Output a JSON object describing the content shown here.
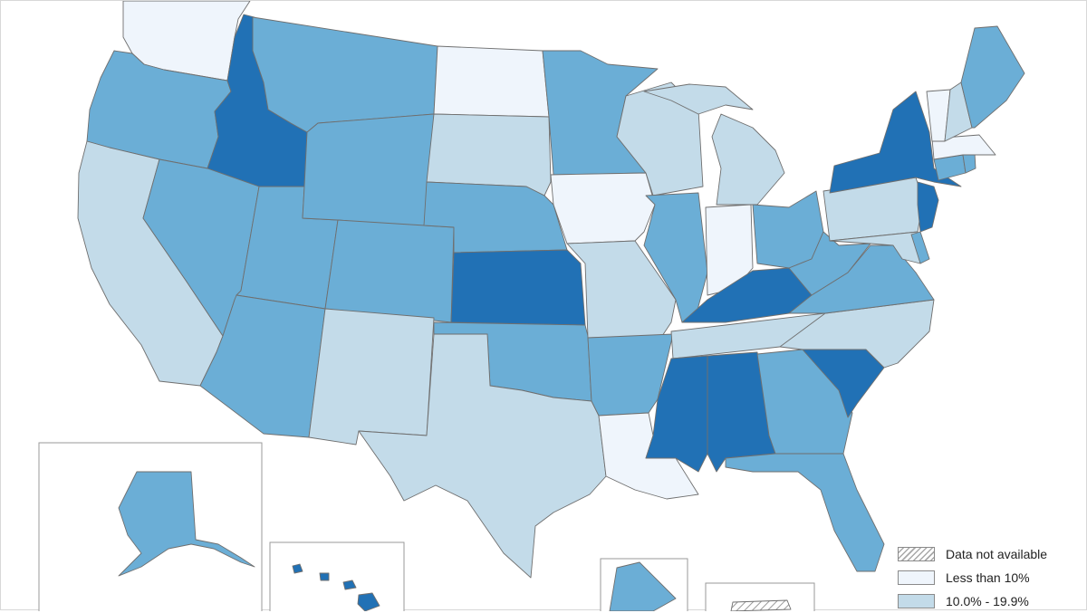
{
  "map": {
    "type": "choropleth",
    "region": "United States"
  },
  "colors": {
    "not_available_hatch": "#a8a8a8",
    "less_than_10": "#eff5fc",
    "ten_to_19_9": "#c3dbe9",
    "twenty_to_29_9": "#6baed6",
    "thirty_plus": "#2171b5",
    "border": "#6f6f6f"
  },
  "legend": {
    "items": [
      {
        "label": "Data not available",
        "class": "na"
      },
      {
        "label": "Less than 10%",
        "class": "c1"
      },
      {
        "label": "10.0% - 19.9%",
        "class": "c2"
      }
    ]
  },
  "state_classes": {
    "WA": "c1",
    "OR": "c3",
    "CA": "c2",
    "ID": "c4",
    "MT": "c3",
    "NV": "c3",
    "UT": "c3",
    "AZ": "c3",
    "WY": "c3",
    "CO": "c3",
    "NM": "c2",
    "ND": "c1",
    "SD": "c2",
    "NE": "c3",
    "KS": "c4",
    "OK": "c3",
    "TX": "c2",
    "MN": "c3",
    "IA": "c1",
    "MO": "c2",
    "AR": "c3",
    "LA": "c1",
    "WI": "c2",
    "IL": "c3",
    "MI": "c2",
    "IN": "c1",
    "OH": "c3",
    "KY": "c4",
    "TN": "c2",
    "MS": "c4",
    "AL": "c4",
    "GA": "c3",
    "FL": "c3",
    "SC": "c4",
    "NC": "c2",
    "VA": "c3",
    "WV": "c3",
    "PA": "c2",
    "NY": "c4",
    "NJ": "c4",
    "DE": "c3",
    "MD": "c2",
    "CT": "c3",
    "RI": "c3",
    "MA": "c1",
    "VT": "c1",
    "NH": "c2",
    "ME": "c3",
    "AK": "c3",
    "HI": "c4",
    "DC": "c3",
    "PR": "na"
  }
}
